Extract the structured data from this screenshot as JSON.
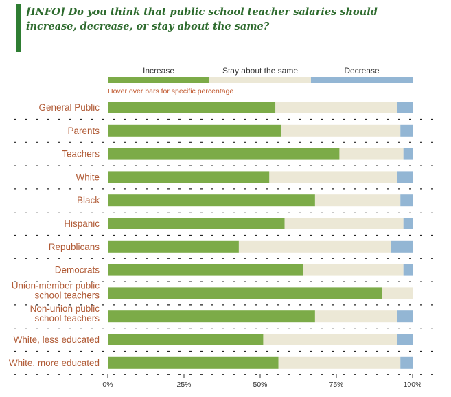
{
  "title": "[INFO] Do you think that public school teacher salaries should increase, decrease, or stay about the same?",
  "hint": "Hover over bars for specific percentage",
  "colors": {
    "increase": "#7cab48",
    "same": "#ece8d6",
    "decrease": "#93b6d4",
    "label": "#b05a35"
  },
  "chart_data": {
    "type": "bar",
    "orientation": "horizontal",
    "stacked": true,
    "categories": [
      "General Public",
      "Parents",
      "Teachers",
      "White",
      "Black",
      "Hispanic",
      "Republicans",
      "Democrats",
      "Union-member public school teachers",
      "Non-union public school teachers",
      "White, less educated",
      "White, more educated"
    ],
    "series": [
      {
        "name": "Increase",
        "values": [
          55,
          57,
          76,
          53,
          68,
          58,
          43,
          64,
          90,
          68,
          51,
          56
        ]
      },
      {
        "name": "Stay about the same",
        "values": [
          40,
          39,
          21,
          42,
          28,
          39,
          50,
          33,
          10,
          27,
          44,
          40
        ]
      },
      {
        "name": "Decrease",
        "values": [
          5,
          4,
          3,
          5,
          4,
          3,
          7,
          3,
          0,
          5,
          5,
          4
        ]
      }
    ],
    "xlim": [
      0,
      100
    ],
    "xticks": [
      "0%",
      "25%",
      "50%",
      "75%",
      "100%"
    ],
    "legend": "top"
  }
}
